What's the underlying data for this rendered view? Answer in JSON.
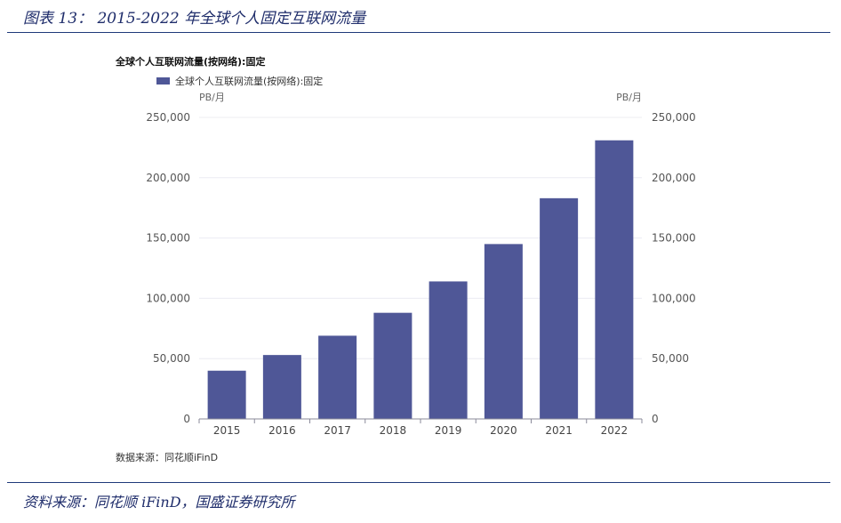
{
  "figure": {
    "caption": "图表 13：  2015-2022 年全球个人固定互联网流量",
    "source": "资料来源：同花顺 iFinD，国盛证券研究所"
  },
  "chart_data": {
    "type": "bar",
    "title": "全球个人互联网流量(按网络):固定",
    "categories": [
      "2015",
      "2016",
      "2017",
      "2018",
      "2019",
      "2020",
      "2021",
      "2022"
    ],
    "series": [
      {
        "name": "全球个人互联网流量(按网络):固定",
        "values": [
          40000,
          53000,
          69000,
          88000,
          114000,
          145000,
          183000,
          231000
        ],
        "color": "#4f5797"
      }
    ],
    "y_unit_left": "PB/月",
    "y_unit_right": "PB/月",
    "ylim": [
      0,
      250000
    ],
    "yticks": [
      "0",
      "50,000",
      "100,000",
      "150,000",
      "200,000",
      "250,000"
    ],
    "grid": true,
    "legend_position": "top-left",
    "source_note": "数据来源：同花顺iFinD"
  }
}
